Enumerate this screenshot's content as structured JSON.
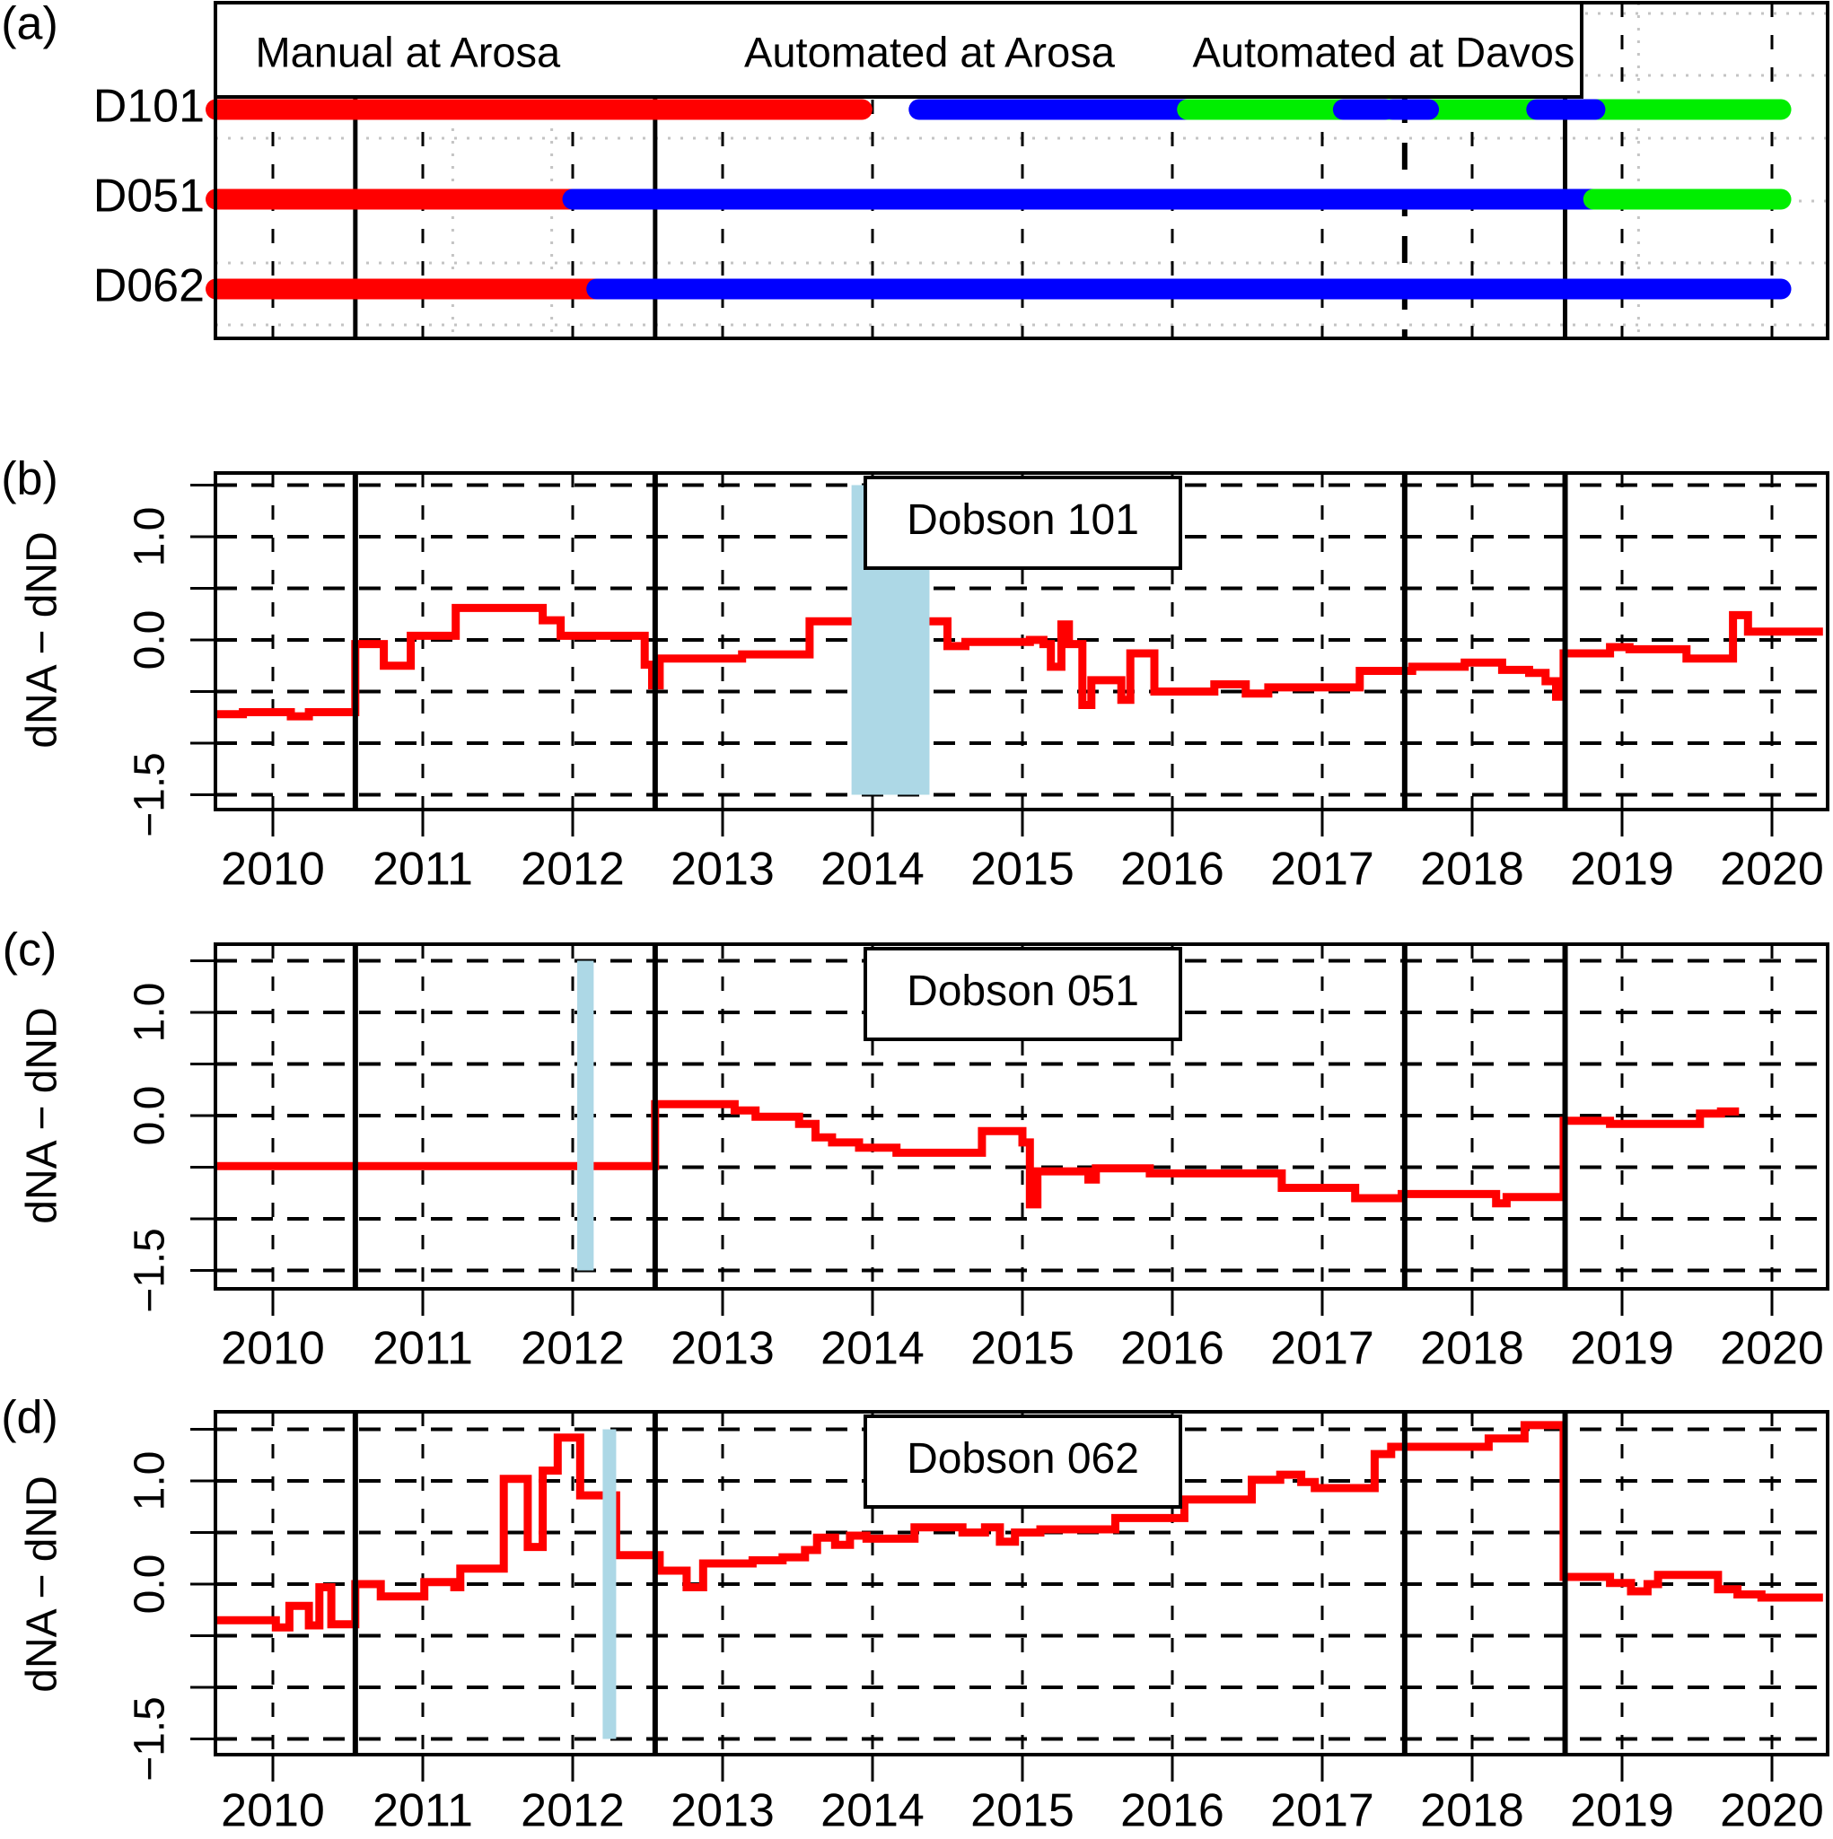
{
  "chart_data": [
    {
      "id": "a",
      "type": "timeline",
      "panel_label": "(a)",
      "x_range": [
        2009.62,
        2020.34
      ],
      "x_ticks": [
        2010,
        2011,
        2012,
        2013,
        2014,
        2015,
        2016,
        2017,
        2018,
        2019,
        2020
      ],
      "legend": [
        {
          "label": "Manual at Arosa",
          "color": "#ff0000",
          "center_year": 2010.9
        },
        {
          "label": "Automated at Arosa",
          "color": "#0000ff",
          "center_year": 2014.38
        },
        {
          "label": "Automated at Davos",
          "color": "#00ee00",
          "center_year": 2017.41
        }
      ],
      "rows": [
        {
          "label": "D101",
          "segments": [
            {
              "from": 2009.62,
              "to": 2013.93,
              "color": "#ff0000"
            },
            {
              "from": 2014.31,
              "to": 2016.1,
              "color": "#0000ff"
            },
            {
              "from": 2016.1,
              "to": 2020.06,
              "color": "#00ee00"
            }
          ],
          "overlays": [
            {
              "from": 2017.14,
              "to": 2017.42,
              "color": "#0000ff"
            },
            {
              "from": 2017.47,
              "to": 2017.71,
              "color": "#0000ff"
            },
            {
              "from": 2018.43,
              "to": 2018.82,
              "color": "#0000ff"
            }
          ]
        },
        {
          "label": "D051",
          "segments": [
            {
              "from": 2009.62,
              "to": 2012.0,
              "color": "#ff0000"
            },
            {
              "from": 2012.0,
              "to": 2018.81,
              "color": "#0000ff"
            },
            {
              "from": 2018.81,
              "to": 2020.06,
              "color": "#00ee00"
            }
          ],
          "overlays": []
        },
        {
          "label": "D062",
          "segments": [
            {
              "from": 2009.62,
              "to": 2012.16,
              "color": "#ff0000"
            },
            {
              "from": 2012.16,
              "to": 2020.06,
              "color": "#0000ff"
            }
          ],
          "overlays": []
        }
      ],
      "event_lines_solid": [
        2010.55,
        2012.55,
        2018.62
      ],
      "event_lines_dashed": [
        2017.55
      ],
      "minor_dotted_verticals": [
        2011.2,
        2011.86,
        2019.11
      ]
    },
    {
      "id": "b",
      "type": "line",
      "step": true,
      "panel_label": "(b)",
      "title": "Dobson 101",
      "ylabel": "dNA − dND",
      "series_color": "#ff0000",
      "x_range": [
        2009.62,
        2020.34
      ],
      "y_range": [
        -1.63,
        1.63
      ],
      "x_ticks": [
        2010,
        2011,
        2012,
        2013,
        2014,
        2015,
        2016,
        2017,
        2018,
        2019,
        2020
      ],
      "x_tick_labels": [
        "2010",
        "2011",
        "2012",
        "2013",
        "2014",
        "2015",
        "2016",
        "2017",
        "2018",
        "2019",
        "2020"
      ],
      "y_grid": [
        -1.5,
        -1.0,
        -0.5,
        0.0,
        0.5,
        1.0,
        1.5
      ],
      "y_tick_labels": [
        {
          "value": 1.0,
          "label": "1.0"
        },
        {
          "value": 0.0,
          "label": "0.0"
        },
        {
          "value": -1.5,
          "label": "−1.5"
        }
      ],
      "event_lines_solid": [
        2010.55,
        2012.55,
        2017.55,
        2018.62
      ],
      "shaded_band": {
        "from": 2013.86,
        "to": 2014.38,
        "color": "#add8e6"
      },
      "steps": [
        [
          2009.62,
          -0.72
        ],
        [
          2009.8,
          -0.7
        ],
        [
          2010.12,
          -0.74
        ],
        [
          2010.24,
          -0.7
        ],
        [
          2010.55,
          -0.04
        ],
        [
          2010.74,
          -0.25
        ],
        [
          2010.92,
          0.04
        ],
        [
          2011.22,
          0.31
        ],
        [
          2011.8,
          0.19
        ],
        [
          2011.92,
          0.04
        ],
        [
          2012.48,
          -0.24
        ],
        [
          2012.53,
          -0.44
        ],
        [
          2012.58,
          -0.18
        ],
        [
          2013.13,
          -0.14
        ],
        [
          2013.58,
          0.18
        ],
        [
          2014.5,
          -0.06
        ],
        [
          2014.62,
          -0.02
        ],
        [
          2015.05,
          0.0
        ],
        [
          2015.14,
          -0.04
        ],
        [
          2015.19,
          -0.26
        ],
        [
          2015.26,
          0.15
        ],
        [
          2015.31,
          -0.04
        ],
        [
          2015.4,
          -0.63
        ],
        [
          2015.46,
          -0.39
        ],
        [
          2015.66,
          -0.58
        ],
        [
          2015.72,
          -0.13
        ],
        [
          2015.88,
          -0.5
        ],
        [
          2016.28,
          -0.43
        ],
        [
          2016.49,
          -0.52
        ],
        [
          2016.64,
          -0.46
        ],
        [
          2017.25,
          -0.3
        ],
        [
          2017.6,
          -0.26
        ],
        [
          2017.95,
          -0.22
        ],
        [
          2018.2,
          -0.29
        ],
        [
          2018.38,
          -0.32
        ],
        [
          2018.49,
          -0.4
        ],
        [
          2018.56,
          -0.55
        ],
        [
          2018.61,
          -0.13
        ],
        [
          2018.92,
          -0.07
        ],
        [
          2019.05,
          -0.09
        ],
        [
          2019.43,
          -0.18
        ],
        [
          2019.74,
          0.24
        ],
        [
          2019.84,
          0.08
        ],
        [
          2020.34,
          0.08
        ]
      ]
    },
    {
      "id": "c",
      "type": "line",
      "step": true,
      "panel_label": "(c)",
      "title": "Dobson 051",
      "ylabel": "dNA − dND",
      "series_color": "#ff0000",
      "x_range": [
        2009.62,
        2020.34
      ],
      "y_range": [
        -1.63,
        1.63
      ],
      "x_ticks": [
        2010,
        2011,
        2012,
        2013,
        2014,
        2015,
        2016,
        2017,
        2018,
        2019,
        2020
      ],
      "x_tick_labels": [
        "2010",
        "2011",
        "2012",
        "2013",
        "2014",
        "2015",
        "2016",
        "2017",
        "2018",
        "2019",
        "2020"
      ],
      "y_grid": [
        -1.5,
        -1.0,
        -0.5,
        0.0,
        0.5,
        1.0,
        1.5
      ],
      "y_tick_labels": [
        {
          "value": 1.0,
          "label": "1.0"
        },
        {
          "value": 0.0,
          "label": "0.0"
        },
        {
          "value": -1.5,
          "label": "−1.5"
        }
      ],
      "event_lines_solid": [
        2010.55,
        2012.55,
        2017.55,
        2018.62
      ],
      "shaded_band": {
        "from": 2012.03,
        "to": 2012.14,
        "color": "#add8e6"
      },
      "steps": [
        [
          2009.62,
          -0.49
        ],
        [
          2012.55,
          0.11
        ],
        [
          2013.08,
          0.05
        ],
        [
          2013.22,
          -0.01
        ],
        [
          2013.51,
          -0.08
        ],
        [
          2013.62,
          -0.21
        ],
        [
          2013.73,
          -0.26
        ],
        [
          2013.91,
          -0.31
        ],
        [
          2014.16,
          -0.36
        ],
        [
          2014.73,
          -0.15
        ],
        [
          2015.0,
          -0.26
        ],
        [
          2015.05,
          -0.86
        ],
        [
          2015.1,
          -0.54
        ],
        [
          2015.44,
          -0.62
        ],
        [
          2015.49,
          -0.51
        ],
        [
          2015.85,
          -0.56
        ],
        [
          2016.73,
          -0.7
        ],
        [
          2017.22,
          -0.8
        ],
        [
          2017.53,
          -0.76
        ],
        [
          2018.16,
          -0.85
        ],
        [
          2018.23,
          -0.79
        ],
        [
          2018.61,
          -0.05
        ],
        [
          2018.92,
          -0.08
        ],
        [
          2019.52,
          0.02
        ],
        [
          2019.66,
          0.04
        ],
        [
          2019.78,
          0.04
        ]
      ]
    },
    {
      "id": "d",
      "type": "line",
      "step": true,
      "panel_label": "(d)",
      "title": "Dobson 062",
      "ylabel": "dNA − dND",
      "series_color": "#ff0000",
      "x_range": [
        2009.62,
        2020.34
      ],
      "y_range": [
        -1.63,
        1.63
      ],
      "x_ticks": [
        2010,
        2011,
        2012,
        2013,
        2014,
        2015,
        2016,
        2017,
        2018,
        2019,
        2020
      ],
      "x_tick_labels": [
        "2010",
        "2011",
        "2012",
        "2013",
        "2014",
        "2015",
        "2016",
        "2017",
        "2018",
        "2019",
        "2020"
      ],
      "y_grid": [
        -1.5,
        -1.0,
        -0.5,
        0.0,
        0.5,
        1.0,
        1.5
      ],
      "y_tick_labels": [
        {
          "value": 1.0,
          "label": "1.0"
        },
        {
          "value": 0.0,
          "label": "0.0"
        },
        {
          "value": -1.5,
          "label": "−1.5"
        }
      ],
      "event_lines_solid": [
        2010.55,
        2012.55,
        2017.55,
        2018.62
      ],
      "shaded_band": {
        "from": 2012.2,
        "to": 2012.29,
        "color": "#add8e6"
      },
      "steps": [
        [
          2009.62,
          -0.35
        ],
        [
          2010.02,
          -0.42
        ],
        [
          2010.11,
          -0.21
        ],
        [
          2010.24,
          -0.4
        ],
        [
          2010.31,
          -0.03
        ],
        [
          2010.39,
          -0.39
        ],
        [
          2010.55,
          0.0
        ],
        [
          2010.72,
          -0.12
        ],
        [
          2011.01,
          0.02
        ],
        [
          2011.21,
          -0.03
        ],
        [
          2011.25,
          0.15
        ],
        [
          2011.54,
          1.02
        ],
        [
          2011.7,
          0.36
        ],
        [
          2011.8,
          1.1
        ],
        [
          2011.9,
          1.42
        ],
        [
          2012.05,
          0.86
        ],
        [
          2012.29,
          0.28
        ],
        [
          2012.58,
          0.13
        ],
        [
          2012.76,
          -0.03
        ],
        [
          2012.87,
          0.2
        ],
        [
          2013.2,
          0.23
        ],
        [
          2013.4,
          0.26
        ],
        [
          2013.55,
          0.33
        ],
        [
          2013.63,
          0.45
        ],
        [
          2013.75,
          0.38
        ],
        [
          2013.85,
          0.47
        ],
        [
          2013.96,
          0.44
        ],
        [
          2014.28,
          0.55
        ],
        [
          2014.6,
          0.5
        ],
        [
          2014.75,
          0.55
        ],
        [
          2014.85,
          0.41
        ],
        [
          2014.95,
          0.5
        ],
        [
          2015.12,
          0.53
        ],
        [
          2015.62,
          0.64
        ],
        [
          2016.08,
          0.82
        ],
        [
          2016.53,
          1.01
        ],
        [
          2016.72,
          1.06
        ],
        [
          2016.86,
          0.99
        ],
        [
          2016.95,
          0.93
        ],
        [
          2017.35,
          1.26
        ],
        [
          2017.46,
          1.33
        ],
        [
          2018.11,
          1.41
        ],
        [
          2018.35,
          1.54
        ],
        [
          2018.61,
          0.07
        ],
        [
          2018.92,
          0.01
        ],
        [
          2019.06,
          -0.07
        ],
        [
          2019.17,
          0.0
        ],
        [
          2019.24,
          0.09
        ],
        [
          2019.64,
          -0.05
        ],
        [
          2019.77,
          -0.1
        ],
        [
          2019.93,
          -0.13
        ],
        [
          2020.34,
          -0.13
        ]
      ]
    }
  ]
}
